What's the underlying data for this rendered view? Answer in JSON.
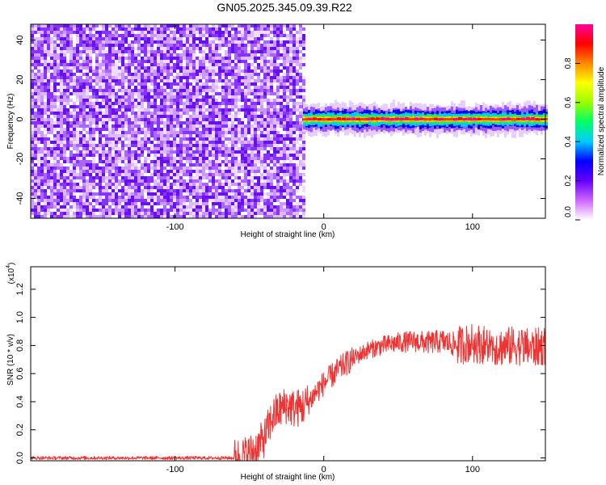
{
  "title": "GN05.2025.345.09.39.R22",
  "chart_data": [
    {
      "type": "heatmap",
      "title": "",
      "xlabel": "Height of straight line (km)",
      "ylabel": "Frequency (Hz)",
      "xlim": [
        -197,
        149
      ],
      "ylim": [
        -50,
        48
      ],
      "xticks": [
        -100,
        0,
        100
      ],
      "yticks": [
        -40,
        -20,
        0,
        20,
        40
      ],
      "noise_region": {
        "x": [
          -197,
          -14
        ],
        "y": [
          -50,
          48
        ]
      },
      "signal_band": {
        "x_start": -14,
        "x_end": 149,
        "center_freq": 0,
        "half_width": 4
      },
      "colorbar": {
        "label": "Normalized spectral amplitude",
        "range": [
          0.0,
          1.0
        ],
        "ticks": [
          0.0,
          0.2,
          0.4,
          0.6,
          0.8
        ],
        "tick_labels": [
          "0.0",
          "0.2",
          "0.4",
          "0.6",
          "0.8"
        ],
        "colors": [
          "#ffffff",
          "#cc66ff",
          "#6600ff",
          "#0000ff",
          "#00ccff",
          "#00ff66",
          "#99ff00",
          "#ffff00",
          "#ff8800",
          "#ff0000",
          "#ff0099"
        ]
      },
      "grid": false
    },
    {
      "type": "line",
      "title": "",
      "xlabel": "Height of straight line (km)",
      "ylabel": "SNR (10 * v/v)",
      "y_multiplier_label": "(x10",
      "y_multiplier_exp": "4",
      "y_multiplier_close": ")",
      "xlim": [
        -197,
        149
      ],
      "ylim": [
        -0.02,
        1.36
      ],
      "xticks": [
        -100,
        0,
        100
      ],
      "yticks": [
        0.0,
        0.2,
        0.4,
        0.6,
        0.8,
        1.0,
        1.2
      ],
      "ytick_labels": [
        "0.0",
        "0.2",
        "0.4",
        "0.6",
        "0.8",
        "1.0",
        "1.2"
      ],
      "series": [
        {
          "color": "#ee3333",
          "x": [
            -197,
            -150,
            -100,
            -60,
            -55,
            -50,
            -45,
            -40,
            -37,
            -35,
            -32,
            -30,
            -27,
            -25,
            -22,
            -20,
            -15,
            -10,
            -5,
            0,
            5,
            10,
            20,
            30,
            40,
            50,
            60,
            70,
            80,
            90,
            100,
            110,
            120,
            130,
            140,
            149
          ],
          "y": [
            0.0,
            0.0,
            0.0,
            0.0,
            0.01,
            0.03,
            0.07,
            0.14,
            0.22,
            0.28,
            0.32,
            0.34,
            0.36,
            0.38,
            0.36,
            0.35,
            0.36,
            0.4,
            0.47,
            0.53,
            0.58,
            0.63,
            0.71,
            0.77,
            0.8,
            0.82,
            0.83,
            0.82,
            0.83,
            0.8,
            0.82,
            0.8,
            0.79,
            0.8,
            0.78,
            0.8
          ]
        }
      ],
      "grid": false
    }
  ]
}
